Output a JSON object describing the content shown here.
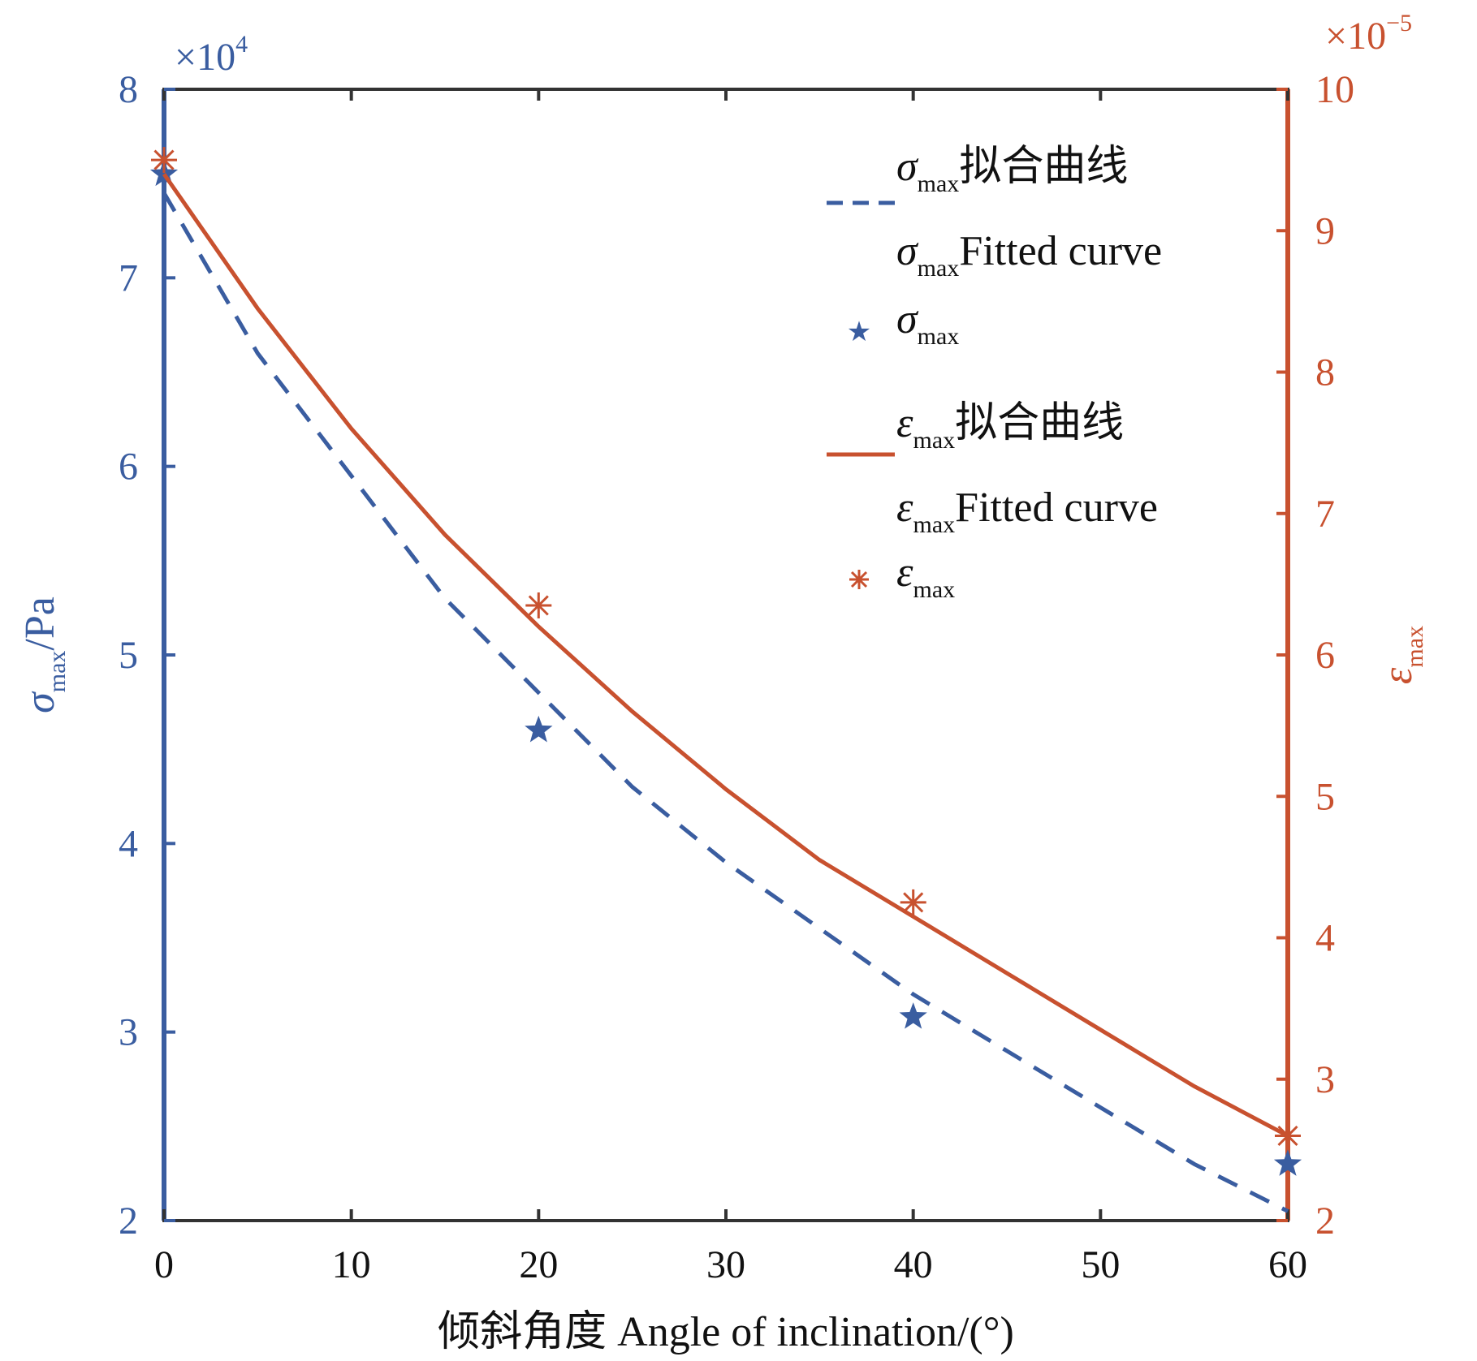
{
  "chart_data": {
    "type": "line",
    "x_axis": {
      "label": "倾斜角度 Angle of inclination/(°)",
      "range": [
        0,
        60
      ],
      "ticks": [
        0,
        10,
        20,
        30,
        40,
        50,
        60
      ]
    },
    "left_axis": {
      "label_symbol": "σ",
      "label_subscript": "max",
      "label_suffix": "/Pa",
      "multiplier": "×10",
      "multiplier_exp": "4",
      "range": [
        2,
        8
      ],
      "ticks": [
        2,
        3,
        4,
        5,
        6,
        7,
        8
      ],
      "color": "#3a5da0"
    },
    "right_axis": {
      "label_symbol": "ε",
      "label_subscript": "max",
      "multiplier": "×10",
      "multiplier_exp": "−5",
      "range": [
        2,
        10
      ],
      "ticks": [
        2,
        3,
        4,
        5,
        6,
        7,
        8,
        9,
        10
      ],
      "color": "#c8512f"
    },
    "series": [
      {
        "name": "σmax拟合曲线 σmaxFitted curve",
        "axis": "left",
        "style": "dashed",
        "color": "#3a5da0",
        "x": [
          0,
          5,
          10,
          15,
          20,
          25,
          30,
          35,
          40,
          45,
          50,
          55,
          60
        ],
        "values": [
          7.45,
          6.6,
          5.95,
          5.3,
          4.8,
          4.3,
          3.9,
          3.55,
          3.2,
          2.9,
          2.6,
          2.3,
          2.05
        ]
      },
      {
        "name": "σmax",
        "axis": "left",
        "style": "star-marker",
        "color": "#3a5da0",
        "x": [
          0,
          20,
          40,
          60
        ],
        "values": [
          7.55,
          4.6,
          3.08,
          2.3
        ]
      },
      {
        "name": "εmax拟合曲线 εmaxFitted curve",
        "axis": "right",
        "style": "solid",
        "color": "#c8512f",
        "x": [
          0,
          5,
          10,
          15,
          20,
          25,
          30,
          35,
          40,
          45,
          50,
          55,
          60
        ],
        "values": [
          9.4,
          8.45,
          7.6,
          6.85,
          6.2,
          5.6,
          5.05,
          4.55,
          4.15,
          3.75,
          3.35,
          2.95,
          2.6
        ]
      },
      {
        "name": "εmax",
        "axis": "right",
        "style": "asterisk-marker",
        "color": "#c8512f",
        "x": [
          0,
          20,
          40,
          60
        ],
        "values": [
          9.5,
          6.35,
          4.25,
          2.6
        ]
      }
    ],
    "legend": {
      "placement": "top-right",
      "entries": [
        {
          "symbol": "σ",
          "sub": "max",
          "text1": "拟合曲线",
          "text2": "Fitted curve",
          "marker": "dashed",
          "color": "#3a5da0"
        },
        {
          "symbol": "σ",
          "sub": "max",
          "text1": "",
          "text2": "",
          "marker": "star",
          "color": "#3a5da0"
        },
        {
          "symbol": "ε",
          "sub": "max",
          "text1": "拟合曲线",
          "text2": "Fitted curve",
          "marker": "solid",
          "color": "#c8512f"
        },
        {
          "symbol": "ε",
          "sub": "max",
          "text1": "",
          "text2": "",
          "marker": "asterisk",
          "color": "#c8512f"
        }
      ]
    }
  }
}
